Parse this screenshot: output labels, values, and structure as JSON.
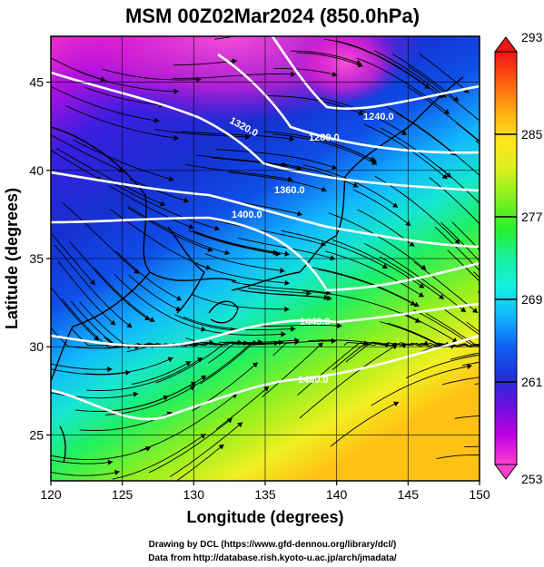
{
  "title": "MSM 00Z02Mar2024 (850.0hPa)",
  "credits": [
    "Drawing by DCL (https://www.gfd-dennou.org/library/dcl/)",
    "Data from http://database.rish.kyoto-u.ac.jp/arch/jmadata/"
  ],
  "chart_data": {
    "type": "heatmap",
    "title": "MSM 00Z02Mar2024 (850.0hPa)",
    "xlabel": "Longitude (degrees)",
    "ylabel": "Latitude  (degrees)",
    "xlim": [
      120,
      150
    ],
    "ylim": [
      22.4,
      47.6
    ],
    "xticks": [
      120,
      125,
      130,
      135,
      140,
      145,
      150
    ],
    "yticks": [
      25,
      30,
      35,
      40,
      45
    ],
    "grid": true,
    "colorbar": {
      "min": 253,
      "max": 293,
      "ticks": [
        253,
        261,
        269,
        277,
        285,
        293
      ],
      "colors": [
        "#ff3fd0",
        "#c000e0",
        "#6a10e0",
        "#1e32d6",
        "#0f5ff2",
        "#10b4ff",
        "#14f0e0",
        "#18f0a0",
        "#26f02a",
        "#80f020",
        "#d8f020",
        "#ffe61a",
        "#ffaa10",
        "#ff5c10",
        "#f01414"
      ]
    },
    "contour_labels": [
      "1240.0",
      "1280.0",
      "1320.0",
      "1360.0",
      "1400.0",
      "1440.0",
      "1480.0"
    ]
  }
}
